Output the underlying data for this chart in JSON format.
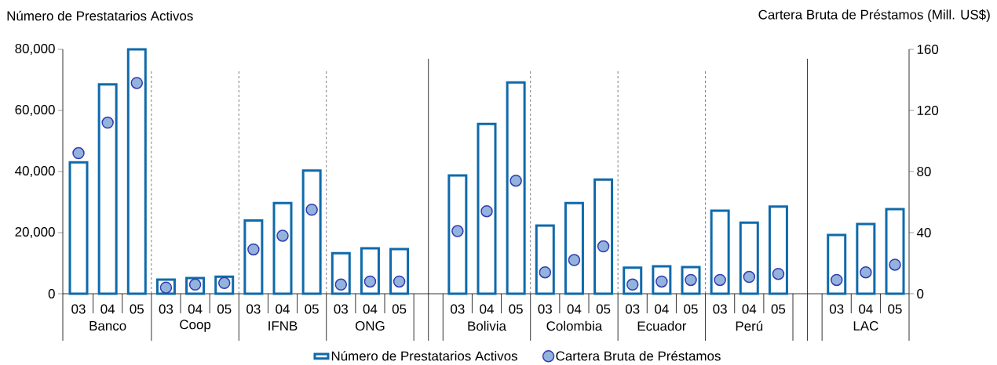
{
  "chart_data": {
    "type": "bar",
    "ylabel": "Número de Prestatarios Activos",
    "y2label": "Cartera Bruta de Préstamos (Mill. US$)",
    "categories": [
      "03",
      "04",
      "05",
      "03",
      "04",
      "05",
      "03",
      "04",
      "05",
      "03",
      "04",
      "05",
      null,
      "03",
      "04",
      "05",
      "03",
      "04",
      "05",
      "03",
      "04",
      "05",
      "03",
      "04",
      "05",
      null,
      "03",
      "04",
      "05"
    ],
    "annotations": [
      "Banco",
      "Coop",
      "IFNB",
      "ONG",
      "Bolivia",
      "Colombia",
      "Ecuador",
      "Perú",
      "LAC"
    ],
    "series": [
      {
        "name": "Número de Prestatarios Activos",
        "axis": "y",
        "color": "#0f6aab",
        "values": [
          43000,
          68500,
          80000,
          4600,
          5100,
          5600,
          24000,
          29700,
          40300,
          13300,
          14900,
          14600,
          null,
          38700,
          55600,
          69200,
          22300,
          29700,
          37400,
          8500,
          9000,
          8700,
          27200,
          23300,
          28500,
          null,
          19200,
          22800,
          27700
        ]
      },
      {
        "name": "Cartera Bruta de Préstamos",
        "type": "scatter",
        "axis": "y2",
        "color": "#93b3dc",
        "values": [
          92,
          112,
          138,
          4,
          6,
          7,
          29,
          38,
          55,
          6,
          8,
          8,
          null,
          41,
          54,
          74,
          14,
          22,
          31,
          6,
          8,
          9,
          9,
          11,
          13,
          null,
          9,
          14,
          19
        ]
      }
    ],
    "ylim": [
      0,
      80000
    ],
    "yticks": [
      0,
      {
        "value": 20000,
        "label": "20,000"
      },
      {
        "value": 40000,
        "label": "40,000"
      },
      {
        "value": 60000,
        "label": "60,000"
      },
      {
        "value": 80000,
        "label": "80,000"
      }
    ],
    "y2lim": [
      0,
      160
    ],
    "y2ticks": [
      0,
      40,
      80,
      120,
      160
    ],
    "legend": "bottom"
  }
}
